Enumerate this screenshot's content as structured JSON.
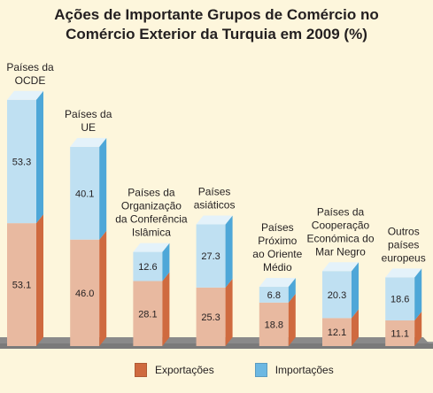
{
  "chart_data": {
    "type": "bar",
    "stacked": true,
    "title": "Ações de Importante Grupos de Comércio no Comércio Exterior da Turquia em 2009 (%)",
    "categories": [
      "Países da OCDE",
      "Países da UE",
      "Países da Organização da Conferência Islâmica",
      "Países asiáticos",
      "Países Próximo ao Oriente Médio",
      "Países da Cooperação Económica do Mar Negro",
      "Outros países europeus"
    ],
    "category_lines": [
      [
        "Países da",
        "OCDE"
      ],
      [
        "Países da",
        "UE"
      ],
      [
        "Países da",
        "Organização",
        "da Conferência",
        "Islâmica"
      ],
      [
        "Países",
        "asiáticos"
      ],
      [
        "Países",
        "Próximo",
        "ao Oriente",
        "Médio"
      ],
      [
        "Países da",
        "Cooperação",
        "Económica do",
        "Mar Negro"
      ],
      [
        "Outros",
        "países",
        "europeus"
      ]
    ],
    "series": [
      {
        "name": "Exportações",
        "values": [
          53.1,
          46.0,
          28.1,
          25.3,
          18.8,
          12.1,
          11.1
        ],
        "labels": [
          "53.1",
          "46.0",
          "28.1",
          "25.3",
          "18.8",
          "12.1",
          "11.1"
        ]
      },
      {
        "name": "Importações",
        "values": [
          53.3,
          40.1,
          12.6,
          27.3,
          6.8,
          20.3,
          18.6
        ],
        "labels": [
          "53.3",
          "40.1",
          "12.6",
          "27.3",
          "6.8",
          "20.3",
          "18.6"
        ]
      }
    ],
    "colors": {
      "exports_front": "#e8b9a0",
      "exports_side": "#cf6a3f",
      "imports_front": "#bfe0f2",
      "imports_side": "#4ea7d8",
      "imports_top": "#e4f2fa",
      "floor": "#8a8a8a",
      "legend_exports": "#cf6a3f",
      "legend_imports": "#6cb8e2"
    },
    "xlabel": "",
    "ylabel": "",
    "grid": false,
    "legend_position": "bottom"
  },
  "title_lines": [
    "Ações de Importante Grupos de Comércio no",
    "Comércio Exterior da Turquia em 2009 (%)"
  ],
  "legend": {
    "exports_label": "Exportações",
    "imports_label": "Importações"
  }
}
